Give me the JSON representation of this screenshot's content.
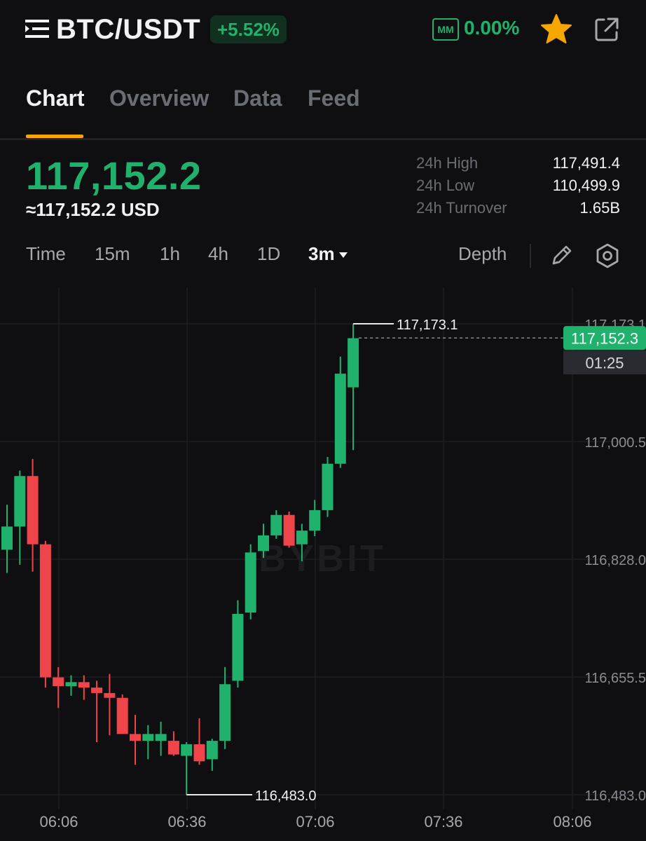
{
  "header": {
    "pair": "BTC/USDT",
    "change": "+5.52%",
    "mm_label": "MM",
    "mm_value": "0.00%",
    "icons": [
      "menu-icon",
      "star-icon",
      "share-icon"
    ]
  },
  "tabs": [
    {
      "label": "Chart",
      "active": true
    },
    {
      "label": "Overview",
      "active": false
    },
    {
      "label": "Data",
      "active": false
    },
    {
      "label": "Feed",
      "active": false
    }
  ],
  "price": {
    "last": "117,152.2",
    "usd": "≈117,152.2 USD"
  },
  "stats": [
    {
      "label": "24h High",
      "value": "117,491.4"
    },
    {
      "label": "24h Low",
      "value": "110,499.9"
    },
    {
      "label": "24h Turnover",
      "value": "1.65B"
    }
  ],
  "intervals": [
    {
      "label": "Time",
      "active": false
    },
    {
      "label": "15m",
      "active": false
    },
    {
      "label": "1h",
      "active": false
    },
    {
      "label": "4h",
      "active": false
    },
    {
      "label": "1D",
      "active": false
    },
    {
      "label": "3m",
      "active": true
    }
  ],
  "depth_label": "Depth",
  "colors": {
    "up": "#20b26c",
    "down": "#ef454a",
    "accent": "#f7a600",
    "background": "#0f0f12"
  },
  "chart_data": {
    "type": "candlestick",
    "y_ticks": [
      "117,173.1",
      "117,000.5",
      "116,828.0",
      "116,655.5",
      "116,483.0"
    ],
    "x_ticks": [
      "06:06",
      "06:36",
      "07:06",
      "07:36",
      "08:06"
    ],
    "watermark": "BYBIT",
    "last_price_tag": "117,152.3",
    "countdown": "01:25",
    "high_marker": "117,173.1",
    "low_marker": "116,483.0",
    "candles": [
      {
        "o": 116842,
        "h": 116908,
        "l": 116808,
        "c": 116876
      },
      {
        "o": 116876,
        "h": 116958,
        "l": 116820,
        "c": 116950
      },
      {
        "o": 116950,
        "h": 116975,
        "l": 116810,
        "c": 116850
      },
      {
        "o": 116850,
        "h": 116855,
        "l": 116640,
        "c": 116655
      },
      {
        "o": 116655,
        "h": 116670,
        "l": 116610,
        "c": 116642
      },
      {
        "o": 116642,
        "h": 116658,
        "l": 116628,
        "c": 116648
      },
      {
        "o": 116648,
        "h": 116658,
        "l": 116622,
        "c": 116640
      },
      {
        "o": 116640,
        "h": 116650,
        "l": 116560,
        "c": 116632
      },
      {
        "o": 116632,
        "h": 116660,
        "l": 116570,
        "c": 116625
      },
      {
        "o": 116625,
        "h": 116630,
        "l": 116575,
        "c": 116572
      },
      {
        "o": 116572,
        "h": 116600,
        "l": 116527,
        "c": 116562
      },
      {
        "o": 116562,
        "h": 116585,
        "l": 116535,
        "c": 116572
      },
      {
        "o": 116562,
        "h": 116590,
        "l": 116540,
        "c": 116572
      },
      {
        "o": 116562,
        "h": 116576,
        "l": 116540,
        "c": 116542
      },
      {
        "o": 116540,
        "h": 116560,
        "l": 116483,
        "c": 116557
      },
      {
        "o": 116557,
        "h": 116595,
        "l": 116527,
        "c": 116532
      },
      {
        "o": 116535,
        "h": 116565,
        "l": 116518,
        "c": 116562
      },
      {
        "o": 116562,
        "h": 116670,
        "l": 116550,
        "c": 116645
      },
      {
        "o": 116650,
        "h": 116768,
        "l": 116640,
        "c": 116748
      },
      {
        "o": 116750,
        "h": 116850,
        "l": 116740,
        "c": 116838
      },
      {
        "o": 116840,
        "h": 116880,
        "l": 116830,
        "c": 116863
      },
      {
        "o": 116863,
        "h": 116900,
        "l": 116858,
        "c": 116893
      },
      {
        "o": 116893,
        "h": 116898,
        "l": 116845,
        "c": 116848
      },
      {
        "o": 116850,
        "h": 116880,
        "l": 116825,
        "c": 116870
      },
      {
        "o": 116870,
        "h": 116915,
        "l": 116862,
        "c": 116900
      },
      {
        "o": 116900,
        "h": 116978,
        "l": 116890,
        "c": 116968
      },
      {
        "o": 116968,
        "h": 117125,
        "l": 116962,
        "c": 117100
      },
      {
        "o": 117080,
        "h": 117173,
        "l": 116988,
        "c": 117152
      }
    ]
  }
}
